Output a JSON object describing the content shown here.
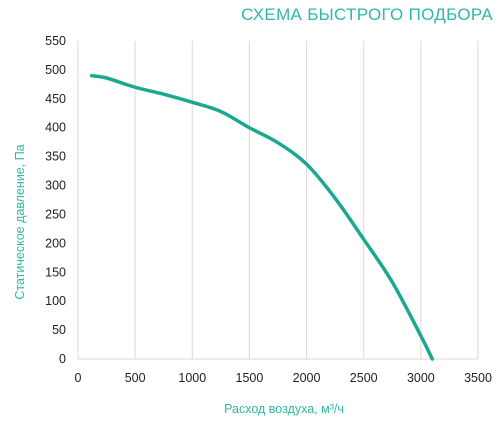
{
  "colors": {
    "accent": "#1aa890",
    "title": "#2fb8a3",
    "axis_title": "#2fb8a3",
    "grid": "#d9d9d9",
    "tick_text": "#222222"
  },
  "chart_data": {
    "type": "line",
    "title": "СХЕМА БЫСТРОГО ПОДБОРА",
    "xlabel": "Расход воздуха, м³/ч",
    "ylabel": "Статическое давление, Па",
    "xlim": [
      0,
      3500
    ],
    "ylim": [
      0,
      550
    ],
    "xticks": [
      0,
      500,
      1000,
      1500,
      2000,
      2500,
      3000,
      3500
    ],
    "yticks": [
      0,
      50,
      100,
      150,
      200,
      250,
      300,
      350,
      400,
      450,
      500,
      550
    ],
    "grid": {
      "horizontal": false,
      "vertical": true
    },
    "series": [
      {
        "x": [
          120,
          250,
          500,
          750,
          1000,
          1250,
          1500,
          1750,
          2000,
          2250,
          2500,
          2750,
          3000,
          3100
        ],
        "y": [
          490,
          486,
          470,
          458,
          444,
          428,
          400,
          374,
          337,
          278,
          207,
          133,
          40,
          0
        ]
      }
    ]
  }
}
